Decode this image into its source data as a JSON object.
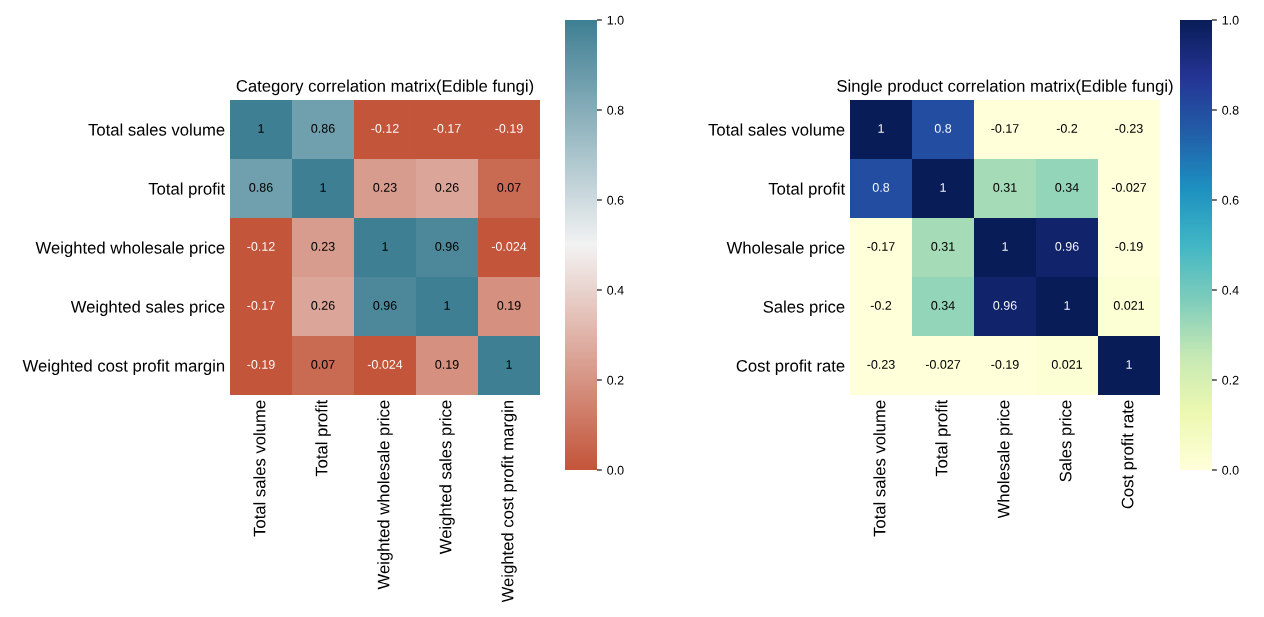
{
  "chart_data": [
    {
      "type": "heatmap",
      "title": "Category correlation matrix(Edible fungi)",
      "categories": [
        "Total sales volume",
        "Total profit",
        "Weighted wholesale price",
        "Weighted sales price",
        "Weighted cost profit margin"
      ],
      "y_categories": [
        "Total sales volume",
        "Total profit",
        "Weighted wholesale price",
        "Weighted sales price",
        "Weighted cost profit margin"
      ],
      "cells": [
        [
          1,
          0.86,
          -0.12,
          -0.17,
          -0.19
        ],
        [
          0.86,
          1,
          0.23,
          0.26,
          0.07
        ],
        [
          -0.12,
          0.23,
          1,
          0.96,
          -0.024
        ],
        [
          -0.17,
          0.26,
          0.96,
          1,
          0.19
        ],
        [
          -0.19,
          0.07,
          -0.024,
          0.19,
          1
        ]
      ],
      "colors": [
        "#c3553a",
        "#f2f2f2",
        "#3f7f93"
      ],
      "clim": [
        0,
        1
      ],
      "cticks": [
        {
          "value": 0,
          "label": "0.0"
        },
        {
          "value": 0.2,
          "label": "0.2"
        },
        {
          "value": 0.4,
          "label": "0.4"
        },
        {
          "value": 0.6,
          "label": "0.6"
        },
        {
          "value": 0.8,
          "label": "0.8"
        },
        {
          "value": 1,
          "label": "1.0"
        }
      ],
      "data_labels": true
    },
    {
      "type": "heatmap",
      "title": "Single product correlation matrix(Edible fungi)",
      "categories": [
        "Total sales volume",
        "Total profit",
        "Wholesale price",
        "Sales price",
        "Cost profit rate"
      ],
      "y_categories": [
        "Total sales volume",
        "Total profit",
        "Wholesale price",
        "Sales price",
        "Cost profit rate"
      ],
      "cells": [
        [
          1,
          0.8,
          -0.17,
          -0.2,
          -0.23
        ],
        [
          0.8,
          1,
          0.31,
          0.34,
          -0.027
        ],
        [
          -0.17,
          0.31,
          1,
          0.96,
          -0.19
        ],
        [
          -0.2,
          0.34,
          0.96,
          1,
          0.021
        ],
        [
          -0.23,
          -0.027,
          -0.19,
          0.021,
          1
        ]
      ],
      "colors": [
        "#ffffd9",
        "#edf8b1",
        "#c7e9b4",
        "#7fcdbb",
        "#41b6c4",
        "#1d91c0",
        "#225ea8",
        "#253494",
        "#081d58"
      ],
      "clim": [
        0,
        1
      ],
      "cticks": [
        {
          "value": 0,
          "label": "0.0"
        },
        {
          "value": 0.2,
          "label": "0.2"
        },
        {
          "value": 0.4,
          "label": "0.4"
        },
        {
          "value": 0.6,
          "label": "0.6"
        },
        {
          "value": 0.8,
          "label": "0.8"
        },
        {
          "value": 1,
          "label": "1.0"
        }
      ],
      "data_labels": true
    }
  ]
}
